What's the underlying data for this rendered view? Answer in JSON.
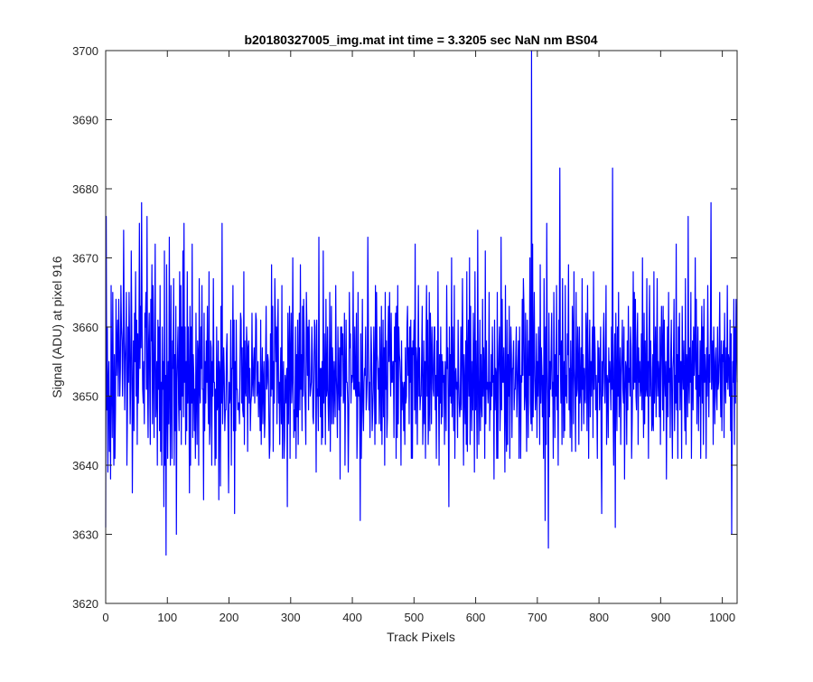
{
  "chart_data": {
    "type": "line",
    "title": "b20180327005_img.mat int time = 3.3205 sec  NaN nm BS04",
    "xlabel": "Track Pixels",
    "ylabel": "Signal (ADU) at pixel 916",
    "xlim": [
      0,
      1024
    ],
    "ylim": [
      3620,
      3700
    ],
    "xticks": [
      0,
      100,
      200,
      300,
      400,
      500,
      600,
      700,
      800,
      900,
      1000
    ],
    "yticks": [
      3620,
      3630,
      3640,
      3650,
      3660,
      3670,
      3680,
      3690,
      3700
    ],
    "grid": false,
    "legend": "none",
    "series": [
      {
        "color": "#0000ff",
        "y": [
          3631,
          3676,
          3648,
          3660,
          3639,
          3652,
          3655,
          3642,
          3650,
          3638,
          3666,
          3652,
          3644,
          3665,
          3651,
          3640,
          3656,
          3641,
          3648,
          3664,
          3653,
          3657,
          3661,
          3650,
          3664,
          3658,
          3650,
          3654,
          3666,
          3660,
          3658,
          3650,
          3657,
          3674,
          3660,
          3648,
          3655,
          3658,
          3665,
          3640,
          3648,
          3660,
          3652,
          3665,
          3658,
          3646,
          3652,
          3671,
          3660,
          3636,
          3650,
          3658,
          3645,
          3662,
          3655,
          3668,
          3650,
          3661,
          3643,
          3659,
          3649,
          3656,
          3675,
          3654,
          3663,
          3657,
          3678,
          3660,
          3651,
          3649,
          3655,
          3646,
          3662,
          3660,
          3665,
          3651,
          3676,
          3652,
          3644,
          3658,
          3662,
          3651,
          3643,
          3664,
          3658,
          3669,
          3646,
          3666,
          3654,
          3644,
          3658,
          3672,
          3647,
          3650,
          3655,
          3640,
          3661,
          3651,
          3660,
          3645,
          3666,
          3642,
          3652,
          3640,
          3660,
          3651,
          3655,
          3634,
          3671,
          3640,
          3653,
          3627,
          3669,
          3650,
          3641,
          3655,
          3646,
          3673,
          3651,
          3640,
          3666,
          3650,
          3641,
          3658,
          3654,
          3667,
          3640,
          3656,
          3645,
          3663,
          3630,
          3652,
          3656,
          3660,
          3649,
          3645,
          3668,
          3648,
          3666,
          3643,
          3660,
          3650,
          3671,
          3647,
          3675,
          3652,
          3660,
          3643,
          3655,
          3645,
          3668,
          3649,
          3660,
          3652,
          3636,
          3663,
          3640,
          3660,
          3649,
          3672,
          3644,
          3656,
          3653,
          3645,
          3651,
          3641,
          3662,
          3650,
          3643,
          3658,
          3656,
          3640,
          3667,
          3651,
          3649,
          3660,
          3654,
          3666,
          3651,
          3651,
          3635,
          3662,
          3645,
          3655,
          3649,
          3658,
          3652,
          3663,
          3651,
          3646,
          3668,
          3643,
          3646,
          3658,
          3657,
          3640,
          3655,
          3650,
          3667,
          3652,
          3652,
          3640,
          3651,
          3641,
          3660,
          3648,
          3649,
          3658,
          3635,
          3655,
          3653,
          3637,
          3663,
          3649,
          3675,
          3646,
          3651,
          3657,
          3653,
          3645,
          3648,
          3648,
          3656,
          3659,
          3651,
          3645,
          3636,
          3652,
          3649,
          3650,
          3661,
          3640,
          3654,
          3654,
          3666,
          3645,
          3661,
          3633,
          3655,
          3645,
          3661,
          3651,
          3651,
          3648,
          3649,
          3649,
          3646,
          3655,
          3662,
          3661,
          3649,
          3657,
          3648,
          3647,
          3668,
          3643,
          3658,
          3651,
          3650,
          3660,
          3657,
          3642,
          3657,
          3658,
          3649,
          3654,
          3645,
          3649,
          3650,
          3662,
          3652,
          3650,
          3655,
          3657,
          3649,
          3654,
          3662,
          3661,
          3650,
          3651,
          3655,
          3647,
          3652,
          3651,
          3645,
          3661,
          3643,
          3651,
          3657,
          3646,
          3652,
          3655,
          3644,
          3647,
          3655,
          3663,
          3651,
          3652,
          3656,
          3655,
          3647,
          3641,
          3643,
          3659,
          3650,
          3669,
          3651,
          3663,
          3642,
          3655,
          3649,
          3667,
          3661,
          3655,
          3660,
          3646,
          3659,
          3664,
          3649,
          3652,
          3643,
          3652,
          3657,
          3646,
          3666,
          3641,
          3652,
          3655,
          3641,
          3644,
          3653,
          3649,
          3652,
          3654,
          3634,
          3662,
          3646,
          3655,
          3663,
          3641,
          3656,
          3662,
          3649,
          3652,
          3670,
          3653,
          3644,
          3648,
          3645,
          3660,
          3641,
          3656,
          3647,
          3661,
          3643,
          3653,
          3662,
          3648,
          3669,
          3651,
          3656,
          3645,
          3663,
          3650,
          3664,
          3659,
          3651,
          3648,
          3643,
          3665,
          3660,
          3653,
          3660,
          3648,
          3661,
          3655,
          3650,
          3651,
          3652,
          3660,
          3656,
          3647,
          3646,
          3652,
          3661,
          3660,
          3652,
          3639,
          3661,
          3650,
          3651,
          3645,
          3673,
          3650,
          3654,
          3647,
          3654,
          3643,
          3655,
          3644,
          3671,
          3649,
          3659,
          3653,
          3643,
          3664,
          3650,
          3651,
          3660,
          3649,
          3645,
          3651,
          3665,
          3642,
          3654,
          3663,
          3646,
          3657,
          3653,
          3646,
          3655,
          3651,
          3647,
          3666,
          3653,
          3650,
          3644,
          3660,
          3652,
          3648,
          3657,
          3638,
          3660,
          3650,
          3660,
          3656,
          3659,
          3649,
          3650,
          3662,
          3640,
          3652,
          3661,
          3652,
          3652,
          3649,
          3639,
          3647,
          3665,
          3657,
          3659,
          3649,
          3653,
          3652,
          3653,
          3668,
          3651,
          3651,
          3660,
          3651,
          3650,
          3662,
          3641,
          3647,
          3665,
          3650,
          3652,
          3649,
          3632,
          3659,
          3641,
          3650,
          3664,
          3648,
          3645,
          3652,
          3654,
          3653,
          3660,
          3648,
          3650,
          3653,
          3673,
          3660,
          3648,
          3652,
          3644,
          3653,
          3660,
          3655,
          3645,
          3648,
          3651,
          3660,
          3653,
          3643,
          3666,
          3646,
          3665,
          3656,
          3655,
          3651,
          3654,
          3646,
          3660,
          3653,
          3645,
          3663,
          3643,
          3652,
          3661,
          3647,
          3657,
          3640,
          3665,
          3651,
          3658,
          3644,
          3647,
          3658,
          3663,
          3655,
          3665,
          3657,
          3650,
          3662,
          3652,
          3652,
          3655,
          3655,
          3644,
          3660,
          3655,
          3662,
          3641,
          3663,
          3644,
          3666,
          3646,
          3660,
          3656,
          3655,
          3652,
          3640,
          3658,
          3648,
          3652,
          3651,
          3645,
          3652,
          3643,
          3657,
          3649,
          3650,
          3660,
          3663,
          3653,
          3657,
          3646,
          3660,
          3652,
          3661,
          3641,
          3657,
          3641,
          3658,
          3656,
          3661,
          3648,
          3672,
          3646,
          3657,
          3655,
          3643,
          3655,
          3666,
          3650,
          3657,
          3648,
          3650,
          3650,
          3656,
          3663,
          3643,
          3648,
          3658,
          3646,
          3655,
          3641,
          3658,
          3666,
          3650,
          3661,
          3643,
          3648,
          3665,
          3645,
          3662,
          3656,
          3646,
          3660,
          3656,
          3651,
          3650,
          3660,
          3660,
          3648,
          3653,
          3641,
          3658,
          3650,
          3668,
          3651,
          3640,
          3656,
          3649,
          3660,
          3646,
          3656,
          3647,
          3655,
          3652,
          3653,
          3643,
          3655,
          3652,
          3645,
          3666,
          3654,
          3657,
          3648,
          3634,
          3660,
          3650,
          3656,
          3649,
          3670,
          3647,
          3660,
          3652,
          3645,
          3666,
          3641,
          3653,
          3654,
          3651,
          3652,
          3644,
          3661,
          3653,
          3649,
          3647,
          3649,
          3660,
          3648,
          3656,
          3667,
          3652,
          3640,
          3656,
          3651,
          3646,
          3658,
          3643,
          3668,
          3642,
          3655,
          3661,
          3650,
          3670,
          3643,
          3663,
          3651,
          3645,
          3655,
          3648,
          3662,
          3655,
          3639,
          3668,
          3648,
          3658,
          3649,
          3641,
          3674,
          3653,
          3643,
          3651,
          3661,
          3645,
          3656,
          3649,
          3647,
          3664,
          3650,
          3657,
          3653,
          3641,
          3671,
          3646,
          3658,
          3651,
          3652,
          3649,
          3652,
          3665,
          3645,
          3652,
          3648,
          3656,
          3650,
          3660,
          3652,
          3653,
          3638,
          3661,
          3648,
          3654,
          3653,
          3641,
          3665,
          3641,
          3653,
          3657,
          3660,
          3645,
          3649,
          3673,
          3648,
          3664,
          3652,
          3652,
          3657,
          3651,
          3639,
          3666,
          3648,
          3642,
          3661,
          3643,
          3656,
          3650,
          3663,
          3641,
          3652,
          3660,
          3656,
          3644,
          3654,
          3654,
          3658,
          3648,
          3651,
          3651,
          3656,
          3660,
          3647,
          3651,
          3655,
          3658,
          3641,
          3660,
          3652,
          3641,
          3653,
          3652,
          3664,
          3653,
          3667,
          3663,
          3648,
          3650,
          3662,
          3650,
          3642,
          3661,
          3654,
          3644,
          3658,
          3653,
          3670,
          3649,
          3646,
          3700,
          3645,
          3672,
          3647,
          3655,
          3665,
          3653,
          3648,
          3651,
          3659,
          3644,
          3655,
          3650,
          3660,
          3654,
          3643,
          3669,
          3649,
          3657,
          3654,
          3647,
          3653,
          3641,
          3667,
          3656,
          3632,
          3660,
          3643,
          3675,
          3654,
          3649,
          3628,
          3662,
          3647,
          3655,
          3651,
          3656,
          3662,
          3650,
          3652,
          3641,
          3665,
          3655,
          3644,
          3656,
          3650,
          3666,
          3648,
          3653,
          3640,
          3661,
          3656,
          3683,
          3655,
          3649,
          3658,
          3643,
          3667,
          3653,
          3644,
          3655,
          3645,
          3666,
          3650,
          3653,
          3649,
          3659,
          3656,
          3669,
          3648,
          3654,
          3644,
          3658,
          3650,
          3642,
          3663,
          3659,
          3646,
          3668,
          3654,
          3651,
          3642,
          3665,
          3650,
          3651,
          3660,
          3655,
          3643,
          3660,
          3649,
          3651,
          3657,
          3645,
          3667,
          3651,
          3656,
          3646,
          3654,
          3650,
          3649,
          3662,
          3658,
          3645,
          3666,
          3653,
          3641,
          3655,
          3661,
          3647,
          3655,
          3650,
          3655,
          3660,
          3644,
          3668,
          3651,
          3660,
          3656,
          3648,
          3653,
          3649,
          3641,
          3658,
          3652,
          3657,
          3648,
          3653,
          3660,
          3644,
          3633,
          3655,
          3650,
          3658,
          3662,
          3652,
          3649,
          3655,
          3666,
          3643,
          3653,
          3652,
          3644,
          3657,
          3652,
          3655,
          3652,
          3648,
          3660,
          3651,
          3683,
          3648,
          3640,
          3654,
          3659,
          3631,
          3662,
          3652,
          3645,
          3660,
          3650,
          3665,
          3647,
          3652,
          3657,
          3643,
          3653,
          3656,
          3661,
          3651,
          3649,
          3660,
          3638,
          3650,
          3655,
          3654,
          3643,
          3658,
          3648,
          3663,
          3652,
          3654,
          3650,
          3660,
          3657,
          3641,
          3646,
          3653,
          3668,
          3651,
          3665,
          3652,
          3664,
          3650,
          3648,
          3658,
          3662,
          3643,
          3657,
          3652,
          3655,
          3650,
          3651,
          3659,
          3648,
          3670,
          3652,
          3644,
          3662,
          3646,
          3658,
          3650,
          3651,
          3667,
          3650,
          3655,
          3641,
          3659,
          3666,
          3650,
          3658,
          3654,
          3645,
          3646,
          3656,
          3645,
          3668,
          3649,
          3654,
          3660,
          3647,
          3654,
          3667,
          3650,
          3655,
          3653,
          3647,
          3660,
          3643,
          3655,
          3663,
          3657,
          3648,
          3663,
          3645,
          3661,
          3653,
          3650,
          3655,
          3638,
          3652,
          3660,
          3647,
          3665,
          3652,
          3654,
          3644,
          3656,
          3661,
          3648,
          3641,
          3654,
          3656,
          3664,
          3645,
          3653,
          3649,
          3672,
          3648,
          3656,
          3641,
          3660,
          3652,
          3662,
          3648,
          3655,
          3655,
          3641,
          3663,
          3654,
          3651,
          3658,
          3650,
          3645,
          3667,
          3643,
          3656,
          3654,
          3647,
          3676,
          3652,
          3649,
          3657,
          3652,
          3665,
          3641,
          3652,
          3658,
          3648,
          3660,
          3653,
          3656,
          3670,
          3651,
          3664,
          3646,
          3653,
          3660,
          3645,
          3653,
          3650,
          3658,
          3641,
          3656,
          3663,
          3649,
          3660,
          3643,
          3664,
          3652,
          3656,
          3653,
          3641,
          3657,
          3650,
          3666,
          3654,
          3647,
          3656,
          3652,
          3660,
          3678,
          3651,
          3655,
          3658,
          3643,
          3660,
          3654,
          3646,
          3655,
          3657,
          3650,
          3648,
          3660,
          3651,
          3652,
          3656,
          3665,
          3652,
          3647,
          3658,
          3645,
          3656,
          3655,
          3658,
          3644,
          3662,
          3653,
          3649,
          3657,
          3652,
          3666,
          3651,
          3656,
          3655,
          3650,
          3661,
          3645,
          3659,
          3630,
          3648,
          3655,
          3652,
          3664,
          3643,
          3660,
          3649,
          3664,
          3657,
          3652
        ]
      }
    ]
  }
}
